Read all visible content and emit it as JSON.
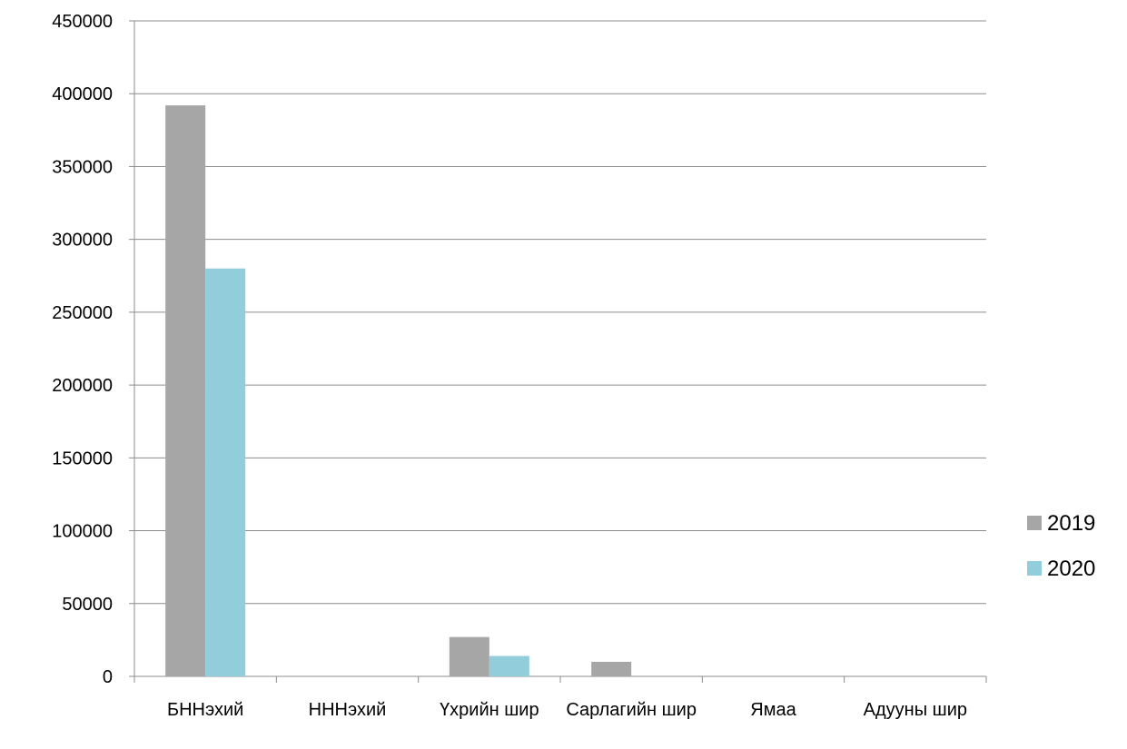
{
  "chart_data": {
    "type": "bar",
    "categories": [
      "БННэхий",
      "ННН​эхий",
      "Үхрийн шир",
      "Сарлагийн шир",
      "Ямаа",
      "Адууны шир"
    ],
    "series": [
      {
        "name": "2019",
        "color": "#a6a6a6",
        "values": [
          392000,
          0,
          27000,
          10000,
          0,
          0
        ]
      },
      {
        "name": "2020",
        "color": "#92cddc",
        "values": [
          280000,
          0,
          14000,
          0,
          0,
          0
        ]
      }
    ],
    "yticks": [
      "0",
      "50000",
      "100000",
      "150000",
      "200000",
      "250000",
      "300000",
      "350000",
      "400000",
      "450000"
    ],
    "ylim": [
      0,
      450000
    ],
    "grid": true,
    "legend_position": "right",
    "title": "",
    "xlabel": "",
    "ylabel": ""
  }
}
